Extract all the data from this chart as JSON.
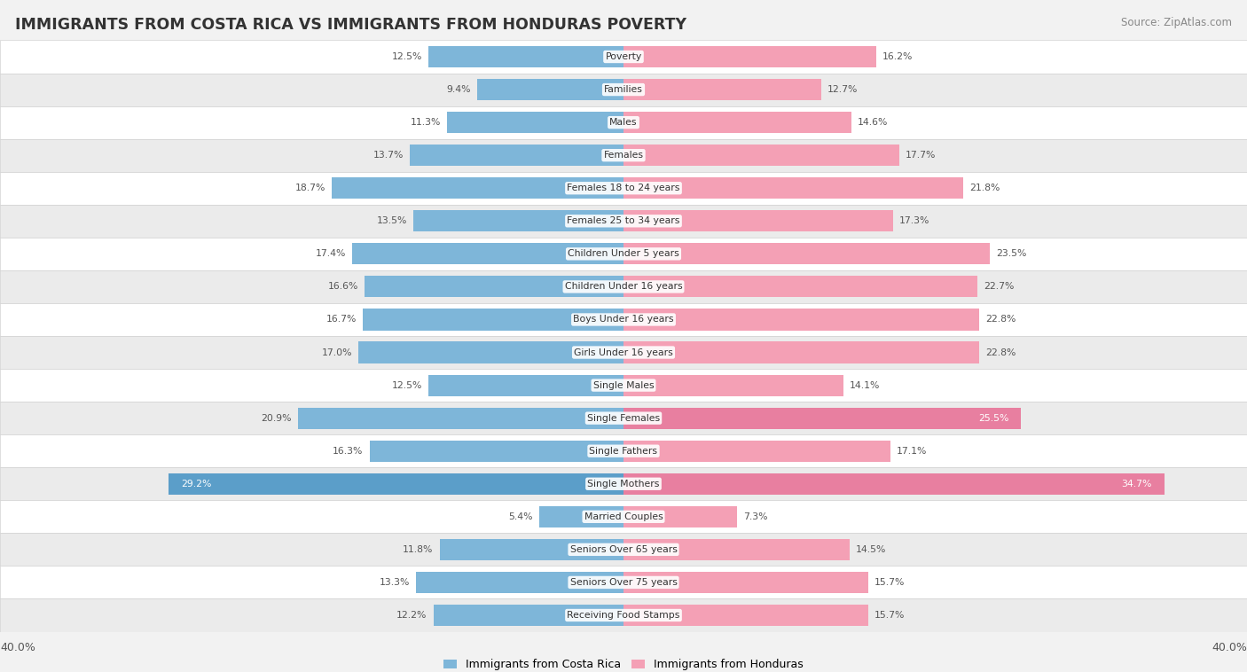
{
  "title": "IMMIGRANTS FROM COSTA RICA VS IMMIGRANTS FROM HONDURAS POVERTY",
  "source": "Source: ZipAtlas.com",
  "categories": [
    "Poverty",
    "Families",
    "Males",
    "Females",
    "Females 18 to 24 years",
    "Females 25 to 34 years",
    "Children Under 5 years",
    "Children Under 16 years",
    "Boys Under 16 years",
    "Girls Under 16 years",
    "Single Males",
    "Single Females",
    "Single Fathers",
    "Single Mothers",
    "Married Couples",
    "Seniors Over 65 years",
    "Seniors Over 75 years",
    "Receiving Food Stamps"
  ],
  "costa_rica": [
    12.5,
    9.4,
    11.3,
    13.7,
    18.7,
    13.5,
    17.4,
    16.6,
    16.7,
    17.0,
    12.5,
    20.9,
    16.3,
    29.2,
    5.4,
    11.8,
    13.3,
    12.2
  ],
  "honduras": [
    16.2,
    12.7,
    14.6,
    17.7,
    21.8,
    17.3,
    23.5,
    22.7,
    22.8,
    22.8,
    14.1,
    25.5,
    17.1,
    34.7,
    7.3,
    14.5,
    15.7,
    15.7
  ],
  "costa_rica_color": "#7EB6D9",
  "honduras_color": "#F4A0B5",
  "costa_rica_highlight": "#5B9EC9",
  "honduras_highlight": "#E87FA0",
  "axis_max": 40.0,
  "background_color": "#f2f2f2",
  "row_light": "#ffffff",
  "row_dark": "#ebebeb"
}
